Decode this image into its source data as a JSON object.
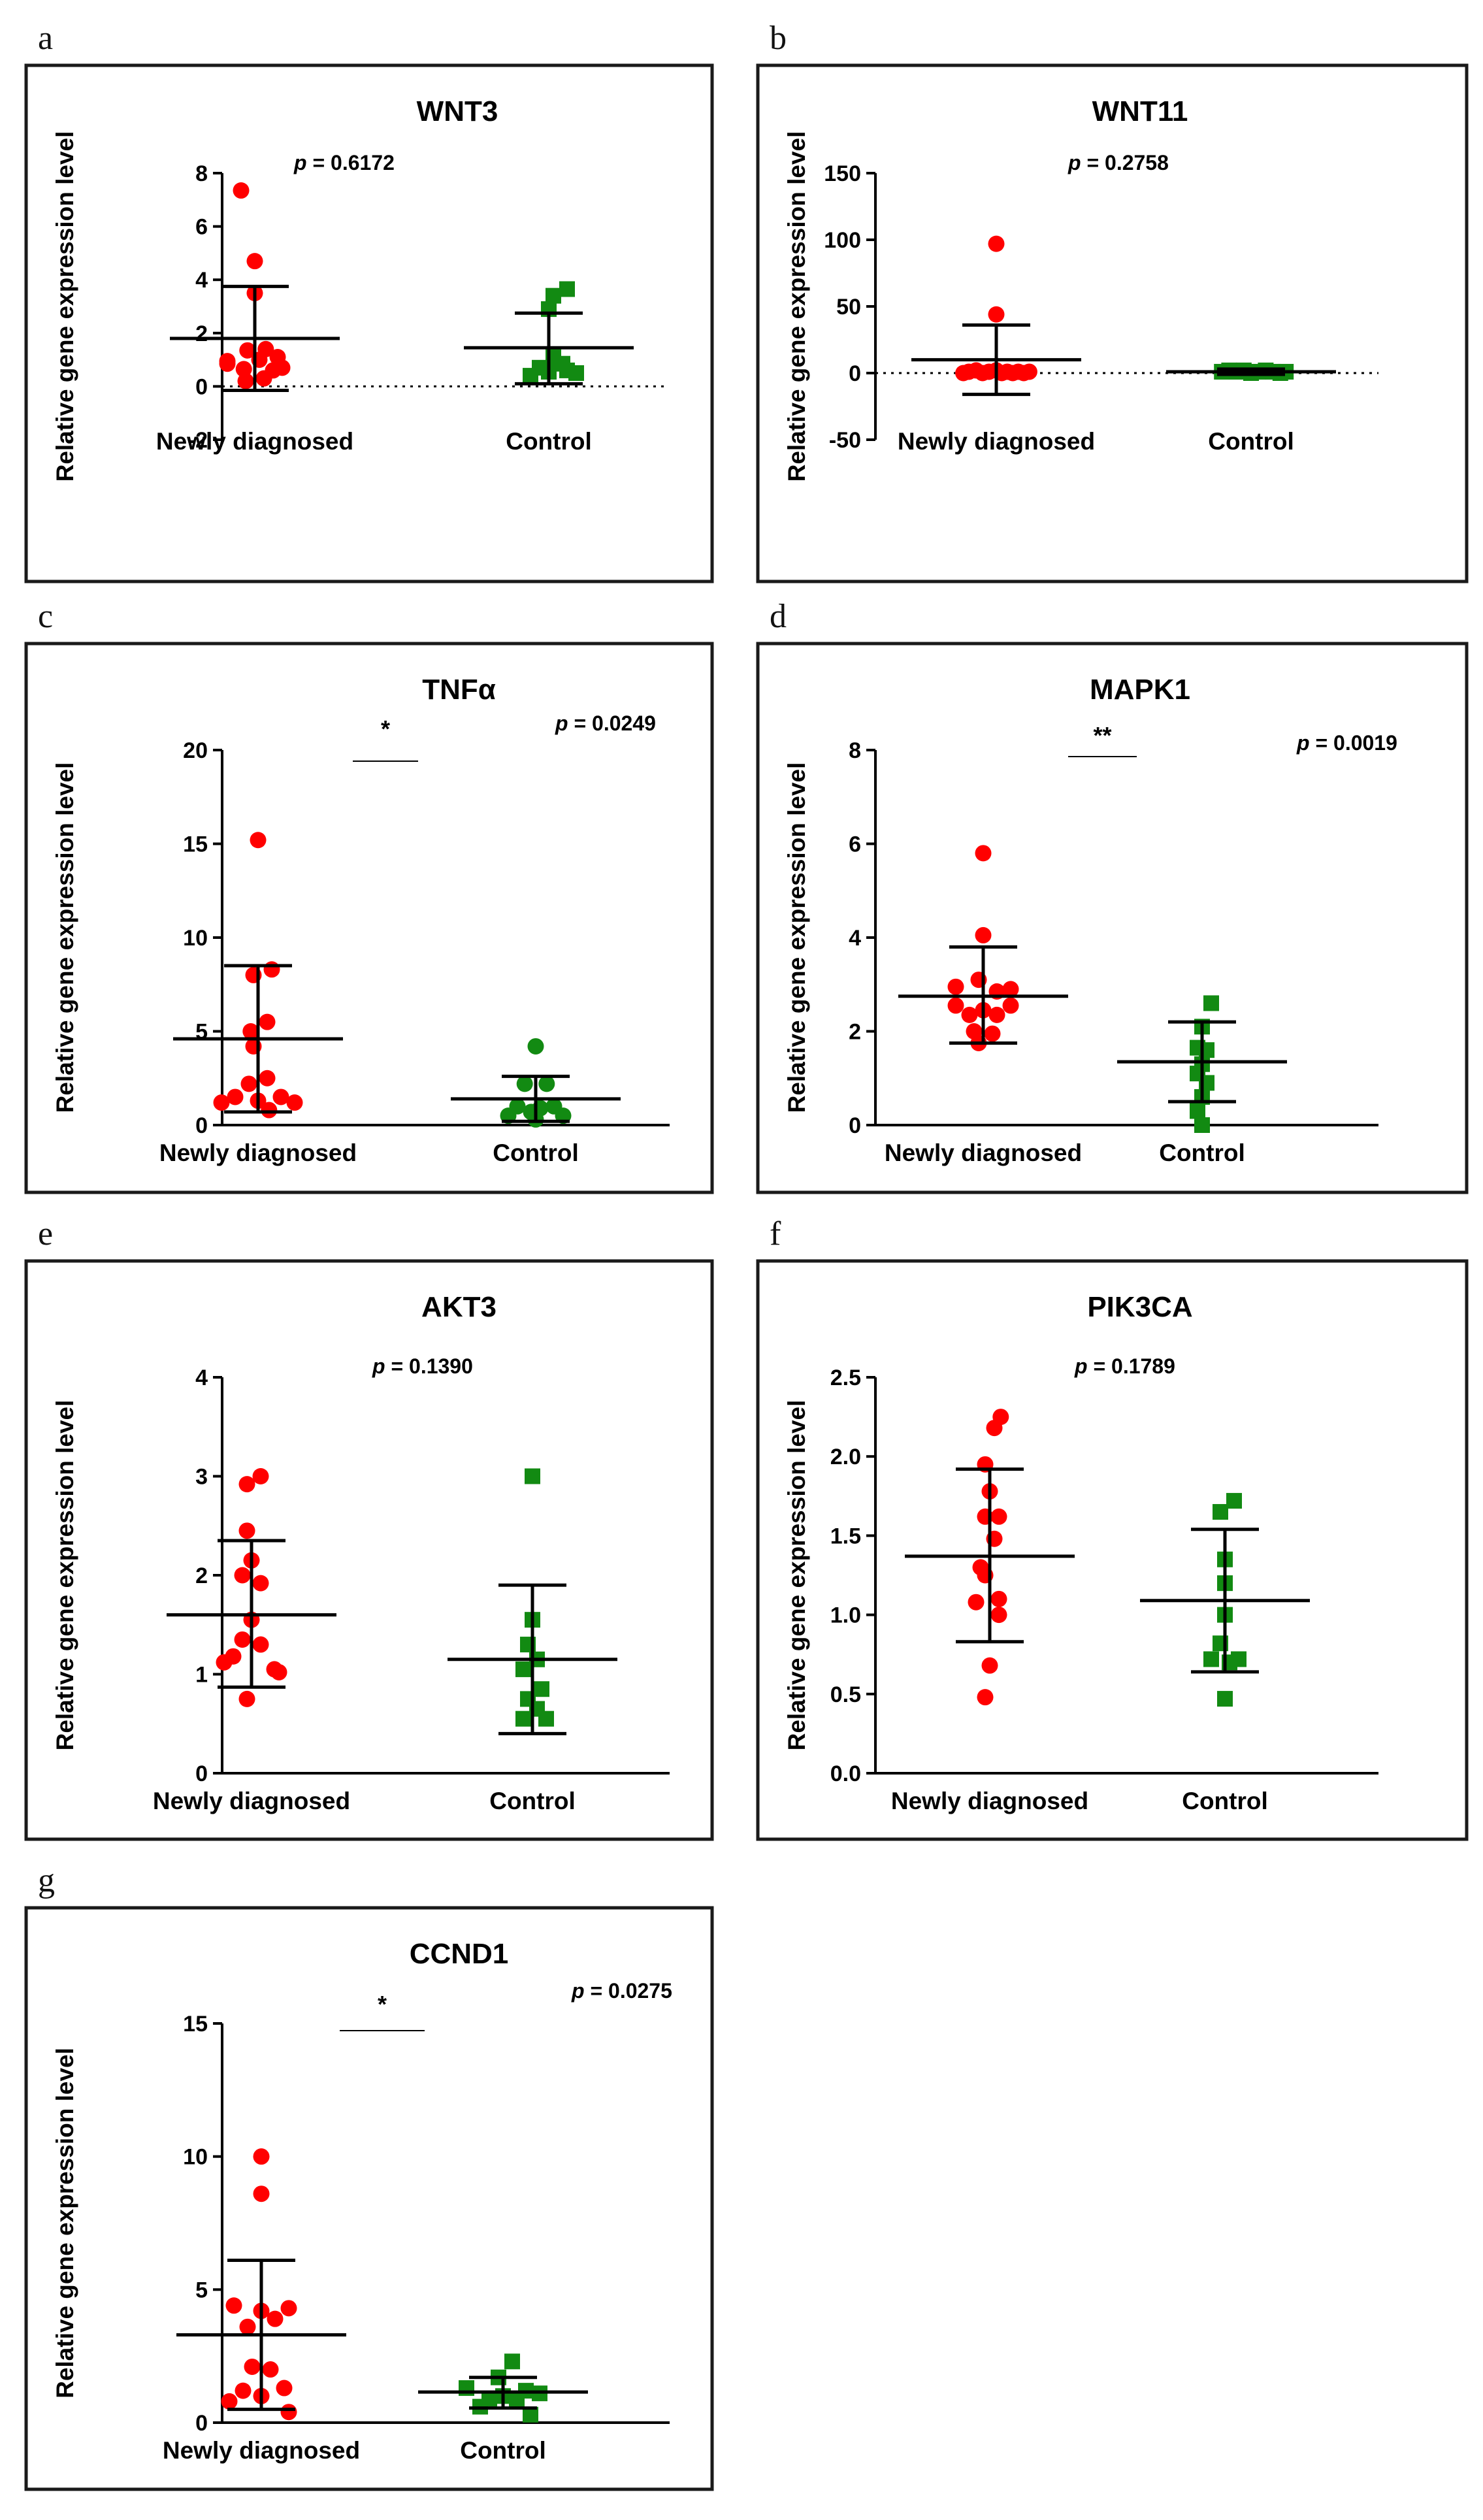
{
  "ylabel": "Relative gene expression level",
  "categories": [
    "Newly diagnosed",
    "Control"
  ],
  "colors": {
    "newly": "#ff0000",
    "control": "#128a12",
    "axis": "#000000"
  },
  "panels": [
    {
      "letter": "a",
      "title": "WNT3",
      "p": "p = 0.6172",
      "sig": "",
      "ylim": [
        -2,
        8
      ],
      "ticks": [
        -2,
        0,
        2,
        4,
        6,
        8
      ],
      "tick_labels": [
        "-2",
        "0",
        "2",
        "4",
        "6",
        "8"
      ],
      "zero_line": true
    },
    {
      "letter": "b",
      "title": "WNT11",
      "p": "p = 0.2758",
      "sig": "",
      "ylim": [
        -50,
        150
      ],
      "ticks": [
        -50,
        0,
        50,
        100,
        150
      ],
      "tick_labels": [
        "-50",
        "0",
        "50",
        "100",
        "150"
      ],
      "zero_line": true
    },
    {
      "letter": "c",
      "title": "TNFα",
      "p": "p = 0.0249",
      "sig": "*",
      "ylim": [
        0,
        20
      ],
      "ticks": [
        0,
        5,
        10,
        15,
        20
      ],
      "tick_labels": [
        "0",
        "5",
        "10",
        "15",
        "20"
      ],
      "zero_line": false
    },
    {
      "letter": "d",
      "title": "MAPK1",
      "p": "p = 0.0019",
      "sig": "**",
      "ylim": [
        0,
        8
      ],
      "ticks": [
        0,
        2,
        4,
        6,
        8
      ],
      "tick_labels": [
        "0",
        "2",
        "4",
        "6",
        "8"
      ],
      "zero_line": false
    },
    {
      "letter": "e",
      "title": "AKT3",
      "p": "p = 0.1390",
      "sig": "",
      "ylim": [
        0,
        4
      ],
      "ticks": [
        0,
        1,
        2,
        3,
        4
      ],
      "tick_labels": [
        "0",
        "1",
        "2",
        "3",
        "4"
      ],
      "zero_line": false
    },
    {
      "letter": "f",
      "title": "PIK3CA",
      "p": "p = 0.1789",
      "sig": "",
      "ylim": [
        0,
        2.5
      ],
      "ticks": [
        0,
        0.5,
        1,
        1.5,
        2,
        2.5
      ],
      "tick_labels": [
        "0.0",
        "0.5",
        "1.0",
        "1.5",
        "2.0",
        "2.5"
      ],
      "zero_line": false
    },
    {
      "letter": "g",
      "title": "CCND1",
      "p": "p = 0.0275",
      "sig": "*",
      "ylim": [
        0,
        15
      ],
      "ticks": [
        0,
        5,
        10,
        15
      ],
      "tick_labels": [
        "0",
        "5",
        "10",
        "15"
      ],
      "zero_line": false
    }
  ],
  "chart_data": [
    {
      "type": "scatter",
      "title": "WNT3",
      "ylabel": "Relative gene expression level",
      "categories": [
        "Newly diagnosed",
        "Control"
      ],
      "ylim": [
        -2,
        8
      ],
      "series": [
        {
          "name": "Newly diagnosed",
          "marker": "circle",
          "mean": 1.8,
          "sd_low": -0.15,
          "sd_high": 3.75,
          "points": [
            [
              -0.15,
              7.35
            ],
            [
              -0.3,
              0.85
            ],
            [
              -0.12,
              0.65
            ],
            [
              0.0,
              4.7
            ],
            [
              0.0,
              3.5
            ],
            [
              0.25,
              1.1
            ],
            [
              -0.08,
              1.35
            ],
            [
              0.12,
              1.4
            ],
            [
              -0.3,
              0.95
            ],
            [
              -0.1,
              0.2
            ],
            [
              0.3,
              0.7
            ],
            [
              0.05,
              1.0
            ],
            [
              0.2,
              0.6
            ],
            [
              0.1,
              0.3
            ]
          ]
        },
        {
          "name": "Control",
          "marker": "square",
          "mean": 1.45,
          "sd_low": 0.1,
          "sd_high": 2.75,
          "points": [
            [
              0.05,
              3.4
            ],
            [
              0.2,
              3.65
            ],
            [
              0.0,
              2.9
            ],
            [
              -0.2,
              0.4
            ],
            [
              -0.1,
              0.7
            ],
            [
              0.05,
              1.1
            ],
            [
              0.15,
              0.85
            ],
            [
              0.3,
              0.5
            ],
            [
              0.0,
              0.55
            ],
            [
              0.2,
              0.6
            ]
          ]
        }
      ]
    },
    {
      "type": "scatter",
      "title": "WNT11",
      "ylabel": "Relative gene expression level",
      "categories": [
        "Newly diagnosed",
        "Control"
      ],
      "ylim": [
        -50,
        150
      ],
      "series": [
        {
          "name": "Newly diagnosed",
          "marker": "circle",
          "mean": 10,
          "sd_low": -16,
          "sd_high": 36,
          "points": [
            [
              0.0,
              97
            ],
            [
              0.0,
              44
            ],
            [
              -0.3,
              1
            ],
            [
              -0.22,
              2
            ],
            [
              -0.15,
              0
            ],
            [
              -0.08,
              1
            ],
            [
              0.0,
              2
            ],
            [
              0.06,
              0
            ],
            [
              0.12,
              1
            ],
            [
              0.18,
              0
            ],
            [
              0.24,
              1
            ],
            [
              0.3,
              0
            ],
            [
              0.36,
              1
            ],
            [
              -0.36,
              0
            ]
          ]
        },
        {
          "name": "Control",
          "marker": "square",
          "mean": 1,
          "sd_low": -1,
          "sd_high": 3,
          "points": [
            [
              -0.32,
              1
            ],
            [
              -0.24,
              2
            ],
            [
              -0.16,
              1
            ],
            [
              -0.08,
              2
            ],
            [
              0.0,
              0
            ],
            [
              0.08,
              1
            ],
            [
              0.16,
              2
            ],
            [
              0.24,
              1
            ],
            [
              0.32,
              0
            ],
            [
              0.38,
              1
            ]
          ]
        }
      ]
    },
    {
      "type": "scatter",
      "title": "TNFα",
      "ylabel": "Relative gene expression level",
      "categories": [
        "Newly diagnosed",
        "Control"
      ],
      "ylim": [
        0,
        20
      ],
      "series": [
        {
          "name": "Newly diagnosed",
          "marker": "circle",
          "mean": 4.6,
          "sd_low": 0.7,
          "sd_high": 8.5,
          "points": [
            [
              0.0,
              15.2
            ],
            [
              0.15,
              8.3
            ],
            [
              -0.05,
              8.0
            ],
            [
              0.1,
              5.5
            ],
            [
              -0.08,
              5.0
            ],
            [
              -0.05,
              4.2
            ],
            [
              0.1,
              2.5
            ],
            [
              -0.1,
              2.2
            ],
            [
              -0.25,
              1.5
            ],
            [
              0.25,
              1.5
            ],
            [
              0.0,
              1.3
            ],
            [
              -0.4,
              1.2
            ],
            [
              0.4,
              1.2
            ],
            [
              0.12,
              0.8
            ]
          ]
        },
        {
          "name": "Control",
          "marker": "circle",
          "mean": 1.4,
          "sd_low": 0.2,
          "sd_high": 2.6,
          "points": [
            [
              0.0,
              4.2
            ],
            [
              -0.12,
              2.2
            ],
            [
              0.12,
              2.2
            ],
            [
              0.2,
              1.0
            ],
            [
              -0.2,
              1.0
            ],
            [
              0.3,
              0.5
            ],
            [
              -0.3,
              0.5
            ],
            [
              0.0,
              0.3
            ],
            [
              0.05,
              0.9
            ],
            [
              -0.05,
              0.7
            ]
          ]
        }
      ]
    },
    {
      "type": "scatter",
      "title": "MAPK1",
      "ylabel": "Relative gene expression level",
      "categories": [
        "Newly diagnosed",
        "Control"
      ],
      "ylim": [
        0,
        8
      ],
      "series": [
        {
          "name": "Newly diagnosed",
          "marker": "circle",
          "mean": 2.75,
          "sd_low": 1.75,
          "sd_high": 3.8,
          "points": [
            [
              0.0,
              5.8
            ],
            [
              0.0,
              4.05
            ],
            [
              -0.05,
              3.1
            ],
            [
              0.15,
              2.85
            ],
            [
              -0.3,
              2.95
            ],
            [
              0.3,
              2.9
            ],
            [
              -0.3,
              2.55
            ],
            [
              0.3,
              2.55
            ],
            [
              -0.15,
              2.35
            ],
            [
              0.15,
              2.35
            ],
            [
              0.0,
              2.45
            ],
            [
              -0.1,
              2.0
            ],
            [
              0.1,
              1.95
            ],
            [
              -0.05,
              1.75
            ]
          ]
        },
        {
          "name": "Control",
          "marker": "square",
          "mean": 1.35,
          "sd_low": 0.5,
          "sd_high": 2.2,
          "points": [
            [
              0.1,
              2.6
            ],
            [
              0.0,
              2.1
            ],
            [
              -0.05,
              1.65
            ],
            [
              0.05,
              1.6
            ],
            [
              0.0,
              1.3
            ],
            [
              -0.05,
              1.1
            ],
            [
              0.05,
              0.9
            ],
            [
              0.0,
              0.6
            ],
            [
              -0.05,
              0.3
            ],
            [
              0.0,
              0.0
            ]
          ]
        }
      ]
    },
    {
      "type": "scatter",
      "title": "AKT3",
      "ylabel": "Relative gene expression level",
      "categories": [
        "Newly diagnosed",
        "Control"
      ],
      "ylim": [
        0,
        4
      ],
      "series": [
        {
          "name": "Newly diagnosed",
          "marker": "circle",
          "mean": 1.6,
          "sd_low": 0.87,
          "sd_high": 2.35,
          "points": [
            [
              -0.05,
              2.92
            ],
            [
              0.1,
              3.0
            ],
            [
              -0.05,
              2.45
            ],
            [
              0.0,
              2.15
            ],
            [
              -0.1,
              2.0
            ],
            [
              0.1,
              1.92
            ],
            [
              0.0,
              1.55
            ],
            [
              -0.1,
              1.35
            ],
            [
              0.1,
              1.3
            ],
            [
              -0.3,
              1.12
            ],
            [
              -0.2,
              1.18
            ],
            [
              0.25,
              1.05
            ],
            [
              0.3,
              1.02
            ],
            [
              -0.05,
              0.75
            ]
          ]
        },
        {
          "name": "Control",
          "marker": "square",
          "mean": 1.15,
          "sd_low": 0.4,
          "sd_high": 1.9,
          "points": [
            [
              0.0,
              3.0
            ],
            [
              0.0,
              1.55
            ],
            [
              -0.05,
              1.3
            ],
            [
              0.05,
              1.15
            ],
            [
              -0.1,
              1.05
            ],
            [
              0.1,
              0.85
            ],
            [
              -0.05,
              0.75
            ],
            [
              0.05,
              0.65
            ],
            [
              -0.1,
              0.55
            ],
            [
              0.15,
              0.55
            ]
          ]
        }
      ]
    },
    {
      "type": "scatter",
      "title": "PIK3CA",
      "ylabel": "Relative gene expression level",
      "categories": [
        "Newly diagnosed",
        "Control"
      ],
      "ylim": [
        0,
        2.5
      ],
      "series": [
        {
          "name": "Newly diagnosed",
          "marker": "circle",
          "mean": 1.37,
          "sd_low": 0.83,
          "sd_high": 1.92,
          "points": [
            [
              0.12,
              2.25
            ],
            [
              0.05,
              2.18
            ],
            [
              -0.05,
              1.95
            ],
            [
              0.0,
              1.78
            ],
            [
              -0.05,
              1.62
            ],
            [
              0.1,
              1.62
            ],
            [
              0.05,
              1.48
            ],
            [
              -0.1,
              1.3
            ],
            [
              -0.05,
              1.25
            ],
            [
              0.1,
              1.1
            ],
            [
              -0.15,
              1.08
            ],
            [
              0.1,
              1.0
            ],
            [
              0.0,
              0.68
            ],
            [
              -0.05,
              0.48
            ]
          ]
        },
        {
          "name": "Control",
          "marker": "square",
          "mean": 1.09,
          "sd_low": 0.64,
          "sd_high": 1.54,
          "points": [
            [
              0.1,
              1.72
            ],
            [
              -0.05,
              1.65
            ],
            [
              0.0,
              1.35
            ],
            [
              0.0,
              1.2
            ],
            [
              0.0,
              1.0
            ],
            [
              -0.05,
              0.82
            ],
            [
              -0.15,
              0.72
            ],
            [
              0.15,
              0.72
            ],
            [
              0.05,
              0.7
            ],
            [
              0.0,
              0.47
            ]
          ]
        }
      ]
    },
    {
      "type": "scatter",
      "title": "CCND1",
      "ylabel": "Relative gene expression level",
      "categories": [
        "Newly diagnosed",
        "Control"
      ],
      "ylim": [
        0,
        15
      ],
      "series": [
        {
          "name": "Newly diagnosed",
          "marker": "circle",
          "mean": 3.3,
          "sd_low": 0.5,
          "sd_high": 6.1,
          "points": [
            [
              0.0,
              10.0
            ],
            [
              0.0,
              8.6
            ],
            [
              -0.3,
              4.4
            ],
            [
              0.3,
              4.3
            ],
            [
              0.15,
              3.9
            ],
            [
              -0.15,
              3.6
            ],
            [
              0.0,
              4.2
            ],
            [
              -0.1,
              2.1
            ],
            [
              0.1,
              2.0
            ],
            [
              -0.2,
              1.2
            ],
            [
              0.25,
              1.3
            ],
            [
              0.0,
              1.0
            ],
            [
              -0.35,
              0.8
            ],
            [
              0.3,
              0.4
            ]
          ]
        },
        {
          "name": "Control",
          "marker": "square",
          "mean": 1.15,
          "sd_low": 0.55,
          "sd_high": 1.7,
          "points": [
            [
              0.1,
              2.3
            ],
            [
              -0.05,
              1.7
            ],
            [
              -0.4,
              1.3
            ],
            [
              0.25,
              1.2
            ],
            [
              0.4,
              1.1
            ],
            [
              0.0,
              1.0
            ],
            [
              -0.15,
              0.9
            ],
            [
              0.15,
              0.8
            ],
            [
              -0.25,
              0.6
            ],
            [
              0.3,
              0.3
            ]
          ]
        }
      ]
    }
  ]
}
